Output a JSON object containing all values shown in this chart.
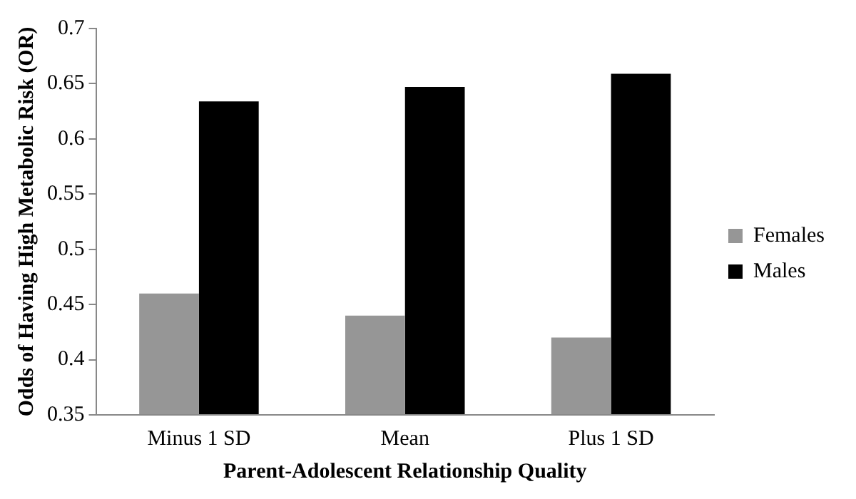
{
  "chart_data": {
    "type": "bar",
    "xlabel": "Parent-Adolescent Relationship Quality",
    "ylabel": "Odds of Having High Metabolic Risk (OR)",
    "categories": [
      "Minus 1 SD",
      "Mean",
      "Plus 1 SD"
    ],
    "series": [
      {
        "name": "Females",
        "color": "#969696",
        "values": [
          0.46,
          0.44,
          0.42
        ]
      },
      {
        "name": "Males",
        "color": "#000000",
        "values": [
          0.634,
          0.647,
          0.659
        ]
      }
    ],
    "ylim": [
      0.35,
      0.7
    ],
    "yticks": [
      0.35,
      0.4,
      0.45,
      0.5,
      0.55,
      0.6,
      0.65,
      0.7
    ],
    "grid": false,
    "legend": "right"
  }
}
